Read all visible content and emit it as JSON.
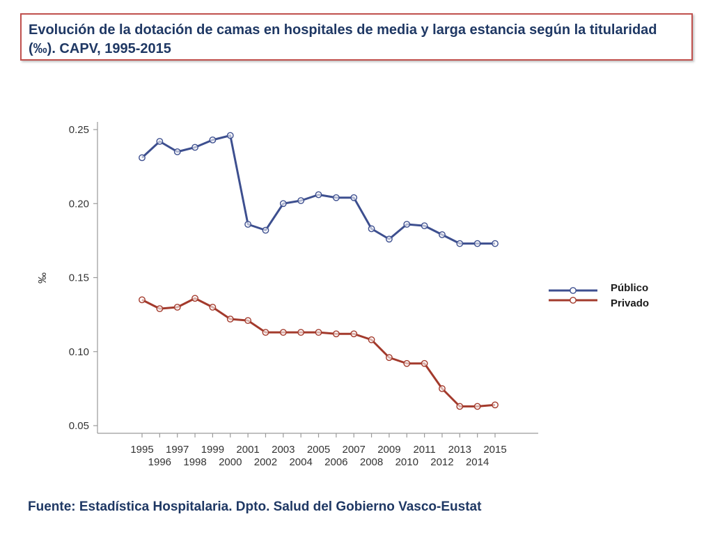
{
  "title": "Evolución de la dotación de camas en hospitales de media y larga estancia según la titularidad (‰). CAPV, 1995-2015",
  "source": "Fuente: Estadística Hospitalaria. Dpto. Salud del Gobierno Vasco-Eustat",
  "colors": {
    "publico": "#3d4f8f",
    "privado": "#a33a2c",
    "axis": "#9a9a9a",
    "title_border": "#c0504d"
  },
  "chart_data": {
    "type": "line",
    "title": "",
    "xlabel": "",
    "ylabel": "‰",
    "x": [
      1995,
      1996,
      1997,
      1998,
      1999,
      2000,
      2001,
      2002,
      2003,
      2004,
      2005,
      2006,
      2007,
      2008,
      2009,
      2010,
      2011,
      2012,
      2013,
      2014,
      2015
    ],
    "ylim": [
      0.05,
      0.25
    ],
    "yticks": [
      "0.25",
      "0.20",
      "0.15",
      "0.10",
      "0.05"
    ],
    "ytick_values": [
      0.25,
      0.2,
      0.15,
      0.1,
      0.05
    ],
    "legend_position": "right",
    "series": [
      {
        "name": "Público",
        "key": "publico",
        "values": [
          0.231,
          0.242,
          0.235,
          0.238,
          0.243,
          0.246,
          0.186,
          0.182,
          0.2,
          0.202,
          0.206,
          0.204,
          0.204,
          0.183,
          0.176,
          0.186,
          0.185,
          0.179,
          0.173,
          0.173,
          0.173
        ]
      },
      {
        "name": "Privado",
        "key": "privado",
        "values": [
          0.135,
          0.129,
          0.13,
          0.136,
          0.13,
          0.122,
          0.121,
          0.113,
          0.113,
          0.113,
          0.113,
          0.112,
          0.112,
          0.108,
          0.096,
          0.092,
          0.092,
          0.075,
          0.063,
          0.063,
          0.064
        ]
      }
    ]
  }
}
